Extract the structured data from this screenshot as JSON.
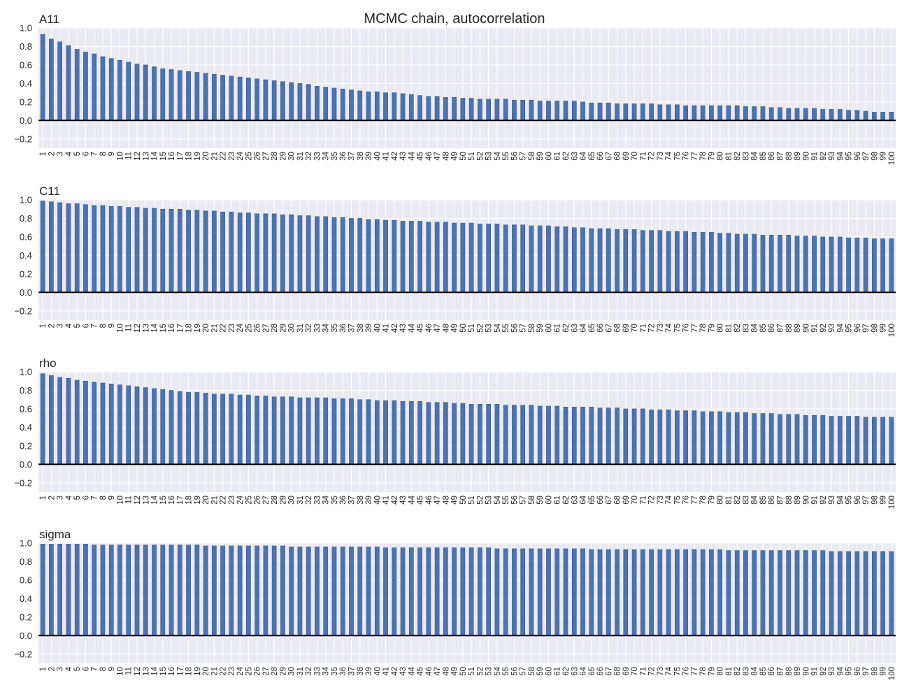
{
  "suptitle": "MCMC chain, autocorrelation",
  "chart_data": [
    {
      "type": "bar",
      "title": "A11",
      "ylim": [
        -0.3,
        1.0
      ],
      "yticks": [
        -0.2,
        0.0,
        0.2,
        0.4,
        0.6,
        0.8,
        1.0
      ],
      "ytick_labels": [
        "−0.2",
        "0.0",
        "0.2",
        "0.4",
        "0.6",
        "0.8",
        "1.0"
      ],
      "grid": true,
      "bar_color": "#4c72b0",
      "categories": [
        "1",
        "2",
        "3",
        "4",
        "5",
        "6",
        "7",
        "8",
        "9",
        "10",
        "11",
        "12",
        "13",
        "14",
        "15",
        "16",
        "17",
        "18",
        "19",
        "20",
        "21",
        "22",
        "23",
        "24",
        "25",
        "26",
        "27",
        "28",
        "29",
        "30",
        "31",
        "32",
        "33",
        "34",
        "35",
        "36",
        "37",
        "38",
        "39",
        "40",
        "41",
        "42",
        "43",
        "44",
        "45",
        "46",
        "47",
        "48",
        "49",
        "50",
        "51",
        "52",
        "53",
        "54",
        "55",
        "56",
        "57",
        "58",
        "59",
        "60",
        "61",
        "62",
        "63",
        "64",
        "65",
        "66",
        "67",
        "68",
        "69",
        "70",
        "71",
        "72",
        "73",
        "74",
        "75",
        "76",
        "77",
        "78",
        "79",
        "80",
        "81",
        "82",
        "83",
        "84",
        "85",
        "86",
        "87",
        "88",
        "89",
        "90",
        "91",
        "92",
        "93",
        "94",
        "95",
        "96",
        "97",
        "98",
        "99",
        "100"
      ],
      "values": [
        0.93,
        0.88,
        0.85,
        0.81,
        0.77,
        0.74,
        0.72,
        0.69,
        0.67,
        0.65,
        0.63,
        0.61,
        0.6,
        0.58,
        0.56,
        0.55,
        0.54,
        0.53,
        0.52,
        0.51,
        0.5,
        0.49,
        0.48,
        0.47,
        0.46,
        0.45,
        0.44,
        0.43,
        0.42,
        0.41,
        0.4,
        0.39,
        0.37,
        0.36,
        0.35,
        0.34,
        0.33,
        0.32,
        0.31,
        0.31,
        0.3,
        0.3,
        0.29,
        0.28,
        0.27,
        0.26,
        0.26,
        0.25,
        0.25,
        0.24,
        0.24,
        0.23,
        0.23,
        0.23,
        0.23,
        0.22,
        0.22,
        0.22,
        0.21,
        0.21,
        0.21,
        0.21,
        0.21,
        0.2,
        0.19,
        0.19,
        0.19,
        0.18,
        0.18,
        0.18,
        0.18,
        0.18,
        0.17,
        0.17,
        0.17,
        0.16,
        0.16,
        0.16,
        0.16,
        0.16,
        0.16,
        0.16,
        0.15,
        0.15,
        0.15,
        0.14,
        0.14,
        0.13,
        0.13,
        0.13,
        0.13,
        0.12,
        0.12,
        0.12,
        0.11,
        0.11,
        0.1,
        0.09,
        0.09,
        0.09
      ]
    },
    {
      "type": "bar",
      "title": "C11",
      "ylim": [
        -0.3,
        1.0
      ],
      "yticks": [
        -0.2,
        0.0,
        0.2,
        0.4,
        0.6,
        0.8,
        1.0
      ],
      "ytick_labels": [
        "−0.2",
        "0.0",
        "0.2",
        "0.4",
        "0.6",
        "0.8",
        "1.0"
      ],
      "grid": true,
      "bar_color": "#4c72b0",
      "categories": [
        "1",
        "2",
        "3",
        "4",
        "5",
        "6",
        "7",
        "8",
        "9",
        "10",
        "11",
        "12",
        "13",
        "14",
        "15",
        "16",
        "17",
        "18",
        "19",
        "20",
        "21",
        "22",
        "23",
        "24",
        "25",
        "26",
        "27",
        "28",
        "29",
        "30",
        "31",
        "32",
        "33",
        "34",
        "35",
        "36",
        "37",
        "38",
        "39",
        "40",
        "41",
        "42",
        "43",
        "44",
        "45",
        "46",
        "47",
        "48",
        "49",
        "50",
        "51",
        "52",
        "53",
        "54",
        "55",
        "56",
        "57",
        "58",
        "59",
        "60",
        "61",
        "62",
        "63",
        "64",
        "65",
        "66",
        "67",
        "68",
        "69",
        "70",
        "71",
        "72",
        "73",
        "74",
        "75",
        "76",
        "77",
        "78",
        "79",
        "80",
        "81",
        "82",
        "83",
        "84",
        "85",
        "86",
        "87",
        "88",
        "89",
        "90",
        "91",
        "92",
        "93",
        "94",
        "95",
        "96",
        "97",
        "98",
        "99",
        "100"
      ],
      "values": [
        0.99,
        0.98,
        0.97,
        0.96,
        0.96,
        0.95,
        0.94,
        0.94,
        0.93,
        0.93,
        0.92,
        0.92,
        0.91,
        0.91,
        0.9,
        0.9,
        0.9,
        0.89,
        0.89,
        0.88,
        0.88,
        0.87,
        0.87,
        0.86,
        0.86,
        0.85,
        0.85,
        0.85,
        0.84,
        0.84,
        0.83,
        0.83,
        0.82,
        0.82,
        0.81,
        0.81,
        0.8,
        0.8,
        0.79,
        0.79,
        0.78,
        0.78,
        0.77,
        0.77,
        0.77,
        0.76,
        0.76,
        0.76,
        0.75,
        0.75,
        0.75,
        0.74,
        0.74,
        0.74,
        0.73,
        0.73,
        0.73,
        0.72,
        0.72,
        0.72,
        0.71,
        0.71,
        0.7,
        0.7,
        0.69,
        0.69,
        0.69,
        0.68,
        0.68,
        0.68,
        0.67,
        0.67,
        0.67,
        0.66,
        0.66,
        0.66,
        0.65,
        0.65,
        0.65,
        0.64,
        0.64,
        0.63,
        0.63,
        0.63,
        0.62,
        0.62,
        0.62,
        0.62,
        0.61,
        0.61,
        0.61,
        0.6,
        0.6,
        0.6,
        0.59,
        0.59,
        0.59,
        0.58,
        0.58,
        0.58
      ]
    },
    {
      "type": "bar",
      "title": "rho",
      "ylim": [
        -0.3,
        1.0
      ],
      "yticks": [
        -0.2,
        0.0,
        0.2,
        0.4,
        0.6,
        0.8,
        1.0
      ],
      "ytick_labels": [
        "−0.2",
        "0.0",
        "0.2",
        "0.4",
        "0.6",
        "0.8",
        "1.0"
      ],
      "grid": true,
      "bar_color": "#4c72b0",
      "categories": [
        "1",
        "2",
        "3",
        "4",
        "5",
        "6",
        "7",
        "8",
        "9",
        "10",
        "11",
        "12",
        "13",
        "14",
        "15",
        "16",
        "17",
        "18",
        "19",
        "20",
        "21",
        "22",
        "23",
        "24",
        "25",
        "26",
        "27",
        "28",
        "29",
        "30",
        "31",
        "32",
        "33",
        "34",
        "35",
        "36",
        "37",
        "38",
        "39",
        "40",
        "41",
        "42",
        "43",
        "44",
        "45",
        "46",
        "47",
        "48",
        "49",
        "50",
        "51",
        "52",
        "53",
        "54",
        "55",
        "56",
        "57",
        "58",
        "59",
        "60",
        "61",
        "62",
        "63",
        "64",
        "65",
        "66",
        "67",
        "68",
        "69",
        "70",
        "71",
        "72",
        "73",
        "74",
        "75",
        "76",
        "77",
        "78",
        "79",
        "80",
        "81",
        "82",
        "83",
        "84",
        "85",
        "86",
        "87",
        "88",
        "89",
        "90",
        "91",
        "92",
        "93",
        "94",
        "95",
        "96",
        "97",
        "98",
        "99",
        "100"
      ],
      "values": [
        0.98,
        0.96,
        0.94,
        0.93,
        0.91,
        0.9,
        0.89,
        0.88,
        0.87,
        0.86,
        0.85,
        0.84,
        0.83,
        0.82,
        0.81,
        0.8,
        0.79,
        0.78,
        0.78,
        0.77,
        0.76,
        0.76,
        0.76,
        0.75,
        0.75,
        0.74,
        0.74,
        0.73,
        0.73,
        0.73,
        0.72,
        0.72,
        0.72,
        0.72,
        0.71,
        0.71,
        0.71,
        0.7,
        0.7,
        0.69,
        0.69,
        0.69,
        0.68,
        0.68,
        0.68,
        0.67,
        0.67,
        0.67,
        0.66,
        0.66,
        0.65,
        0.65,
        0.65,
        0.65,
        0.64,
        0.64,
        0.64,
        0.64,
        0.63,
        0.63,
        0.63,
        0.62,
        0.62,
        0.62,
        0.62,
        0.61,
        0.61,
        0.61,
        0.6,
        0.6,
        0.6,
        0.59,
        0.59,
        0.59,
        0.58,
        0.58,
        0.58,
        0.57,
        0.57,
        0.57,
        0.56,
        0.56,
        0.56,
        0.55,
        0.55,
        0.55,
        0.54,
        0.54,
        0.54,
        0.53,
        0.53,
        0.53,
        0.52,
        0.52,
        0.52,
        0.52,
        0.51,
        0.51,
        0.51,
        0.51
      ]
    },
    {
      "type": "bar",
      "title": "sigma",
      "ylim": [
        -0.3,
        1.0
      ],
      "yticks": [
        -0.2,
        0.0,
        0.2,
        0.4,
        0.6,
        0.8,
        1.0
      ],
      "ytick_labels": [
        "−0.2",
        "0.0",
        "0.2",
        "0.4",
        "0.6",
        "0.8",
        "1.0"
      ],
      "grid": true,
      "bar_color": "#4c72b0",
      "categories": [
        "1",
        "2",
        "3",
        "4",
        "5",
        "6",
        "7",
        "8",
        "9",
        "10",
        "11",
        "12",
        "13",
        "14",
        "15",
        "16",
        "17",
        "18",
        "19",
        "20",
        "21",
        "22",
        "23",
        "24",
        "25",
        "26",
        "27",
        "28",
        "29",
        "30",
        "31",
        "32",
        "33",
        "34",
        "35",
        "36",
        "37",
        "38",
        "39",
        "40",
        "41",
        "42",
        "43",
        "44",
        "45",
        "46",
        "47",
        "48",
        "49",
        "50",
        "51",
        "52",
        "53",
        "54",
        "55",
        "56",
        "57",
        "58",
        "59",
        "60",
        "61",
        "62",
        "63",
        "64",
        "65",
        "66",
        "67",
        "68",
        "69",
        "70",
        "71",
        "72",
        "73",
        "74",
        "75",
        "76",
        "77",
        "78",
        "79",
        "80",
        "81",
        "82",
        "83",
        "84",
        "85",
        "86",
        "87",
        "88",
        "89",
        "90",
        "91",
        "92",
        "93",
        "94",
        "95",
        "96",
        "97",
        "98",
        "99",
        "100"
      ],
      "values": [
        0.99,
        0.99,
        0.99,
        0.99,
        0.99,
        0.99,
        0.98,
        0.98,
        0.98,
        0.98,
        0.98,
        0.98,
        0.98,
        0.98,
        0.98,
        0.98,
        0.98,
        0.98,
        0.98,
        0.97,
        0.97,
        0.97,
        0.97,
        0.97,
        0.97,
        0.97,
        0.97,
        0.97,
        0.97,
        0.96,
        0.96,
        0.96,
        0.96,
        0.96,
        0.96,
        0.96,
        0.96,
        0.96,
        0.96,
        0.96,
        0.95,
        0.95,
        0.95,
        0.95,
        0.95,
        0.95,
        0.95,
        0.95,
        0.95,
        0.95,
        0.95,
        0.95,
        0.95,
        0.94,
        0.94,
        0.94,
        0.94,
        0.94,
        0.94,
        0.94,
        0.94,
        0.94,
        0.94,
        0.94,
        0.93,
        0.93,
        0.93,
        0.93,
        0.93,
        0.93,
        0.93,
        0.93,
        0.93,
        0.93,
        0.93,
        0.93,
        0.93,
        0.93,
        0.93,
        0.93,
        0.92,
        0.92,
        0.92,
        0.92,
        0.92,
        0.92,
        0.92,
        0.92,
        0.92,
        0.92,
        0.92,
        0.92,
        0.91,
        0.91,
        0.91,
        0.91,
        0.91,
        0.91,
        0.91,
        0.91
      ]
    }
  ]
}
